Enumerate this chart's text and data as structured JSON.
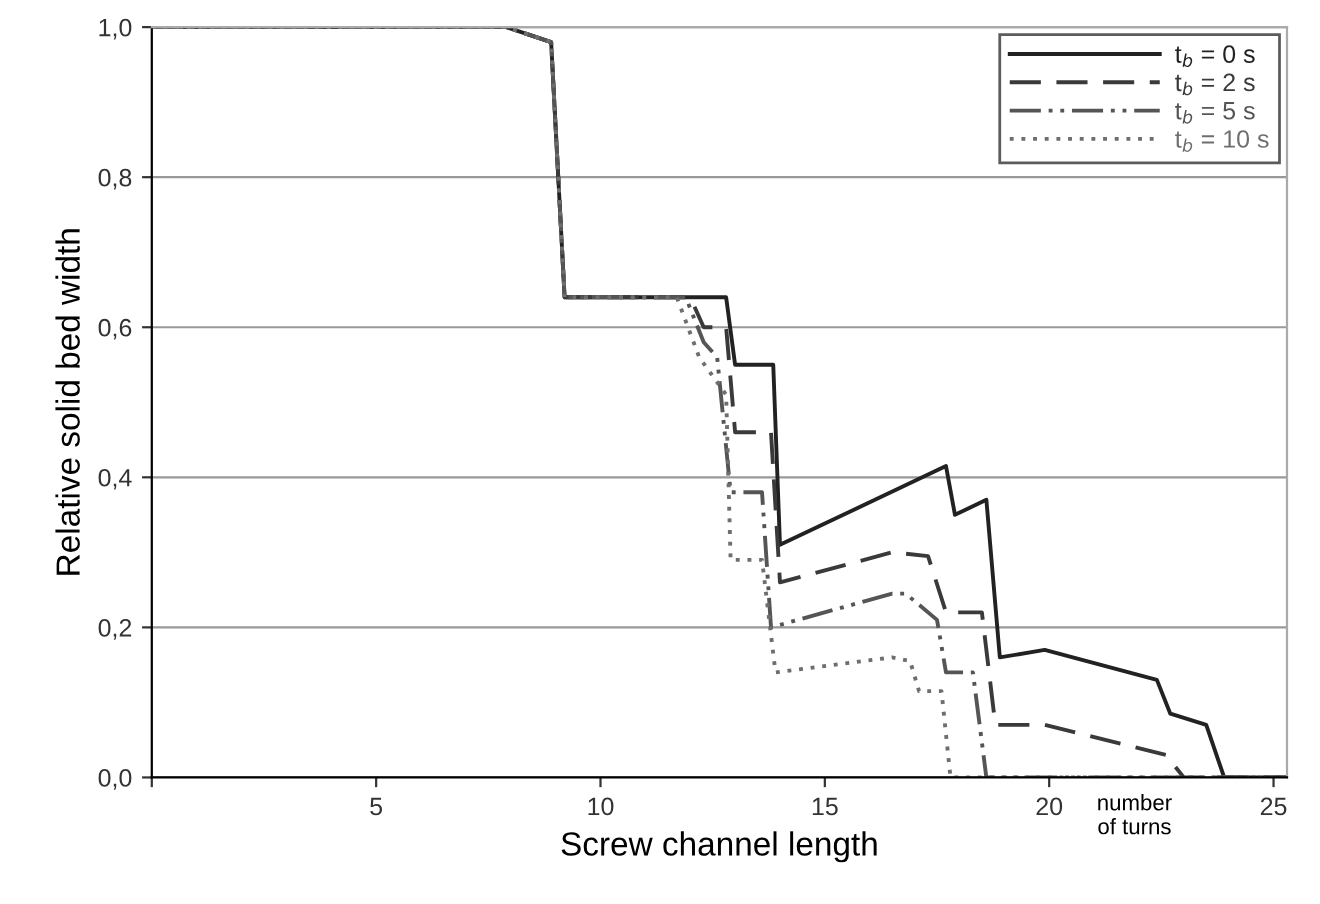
{
  "chart_data": {
    "type": "line",
    "xlabel": "Screw channel length",
    "ylabel": "Relative solid bed width",
    "xlim": [
      0,
      25.3
    ],
    "xticks": [
      {
        "value": 0,
        "label": null
      },
      5,
      10,
      15,
      20,
      25
    ],
    "ylim": [
      0,
      1
    ],
    "yticks": [
      {
        "value": 0,
        "label": "0,0"
      },
      {
        "value": 0.2,
        "label": "0,2"
      },
      {
        "value": 0.4,
        "label": "0,4"
      },
      {
        "value": 0.6,
        "label": "0,6"
      },
      {
        "value": 0.8,
        "label": "0,8"
      },
      {
        "value": 1,
        "label": "1,0"
      }
    ],
    "grid": "y",
    "legend": "top right",
    "marker": "none",
    "annotations": [
      {
        "text": "number\nof turns",
        "x": 21.9,
        "y": 0
      }
    ],
    "series": [
      {
        "name": "t$_{b}$ = 0 s",
        "color": "#222222",
        "line_style": "solid",
        "x": [
          0,
          7.9,
          8.9,
          9.2,
          12.8,
          13.0,
          13.85,
          14.0,
          17.7,
          17.9,
          18.6,
          18.9,
          19.9,
          22.4,
          22.7,
          23.5,
          23.9,
          25.3
        ],
        "values": [
          1,
          1,
          0.98,
          0.64,
          0.64,
          0.55,
          0.55,
          0.31,
          0.415,
          0.35,
          0.37,
          0.16,
          0.17,
          0.13,
          0.085,
          0.07,
          0,
          0
        ]
      },
      {
        "name": "t$_{b}$ = 2 s",
        "color": "#3a3a3a",
        "line_style": "dashed",
        "x": [
          0,
          7.9,
          8.9,
          9.2,
          12.0,
          12.3,
          12.8,
          13.0,
          13.8,
          14.0,
          16.5,
          17.3,
          17.7,
          18.5,
          18.8,
          19.9,
          22.6,
          23.0,
          25.3
        ],
        "values": [
          1,
          1,
          0.98,
          0.64,
          0.64,
          0.6,
          0.6,
          0.46,
          0.46,
          0.26,
          0.3,
          0.295,
          0.22,
          0.22,
          0.07,
          0.07,
          0.03,
          0,
          0
        ]
      },
      {
        "name": "t$_{b}$ = 5 s",
        "color": "#555555",
        "line_style": "dashdot",
        "x": [
          0,
          7.9,
          8.9,
          9.2,
          11.9,
          12.3,
          12.6,
          12.9,
          13.6,
          13.8,
          16.5,
          16.8,
          17.5,
          17.7,
          18.3,
          18.6,
          25.3
        ],
        "values": [
          1,
          1,
          0.98,
          0.64,
          0.64,
          0.58,
          0.56,
          0.38,
          0.38,
          0.2,
          0.245,
          0.245,
          0.21,
          0.14,
          0.14,
          0,
          0
        ]
      },
      {
        "name": "t$_{b}$ = 10 s",
        "color": "#6e6e6e",
        "line_style": "dotted",
        "x": [
          0,
          7.9,
          8.9,
          9.2,
          11.7,
          12.2,
          12.8,
          12.9,
          13.6,
          13.9,
          16.5,
          16.9,
          17.1,
          17.6,
          17.8,
          25.3
        ],
        "values": [
          1,
          1,
          0.98,
          0.64,
          0.64,
          0.56,
          0.51,
          0.29,
          0.29,
          0.14,
          0.16,
          0.155,
          0.115,
          0.115,
          0,
          0
        ]
      }
    ]
  }
}
